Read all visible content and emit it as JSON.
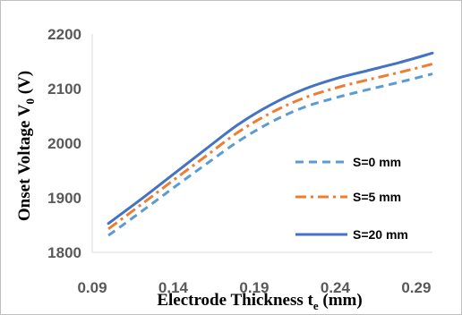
{
  "chart_data": {
    "type": "line",
    "xlabel_main": "Electrode Thickness t",
    "xlabel_sub": "e",
    "xlabel_unit": " (mm)",
    "ylabel_main": "Onset Voltage V",
    "ylabel_sub": "0",
    "ylabel_unit": " (V)",
    "xlim": [
      0.09,
      0.3
    ],
    "ylim": [
      1800,
      2200
    ],
    "x_ticks": [
      "0.09",
      "0.14",
      "0.19",
      "0.24",
      "0.29"
    ],
    "y_ticks": [
      "1800",
      "1900",
      "2000",
      "2100",
      "2200"
    ],
    "legend_position": "right",
    "grid": false,
    "x": [
      0.1,
      0.12,
      0.14,
      0.16,
      0.18,
      0.2,
      0.22,
      0.24,
      0.26,
      0.28,
      0.3
    ],
    "series": [
      {
        "name": "S=0 mm",
        "color": "#5b9bd5",
        "dash": "dashed",
        "values": [
          1831,
          1874,
          1918,
          1961,
          2003,
          2038,
          2065,
          2083,
          2098,
          2112,
          2127
        ]
      },
      {
        "name": "S=5 mm",
        "color": "#ed7d31",
        "dash": "dash-dot",
        "values": [
          1843,
          1887,
          1932,
          1976,
          2020,
          2055,
          2082,
          2101,
          2116,
          2130,
          2145
        ]
      },
      {
        "name": "S=20 mm",
        "color": "#4472c4",
        "dash": "solid",
        "values": [
          1853,
          1897,
          1943,
          1989,
          2034,
          2070,
          2098,
          2118,
          2133,
          2148,
          2165
        ]
      }
    ]
  }
}
